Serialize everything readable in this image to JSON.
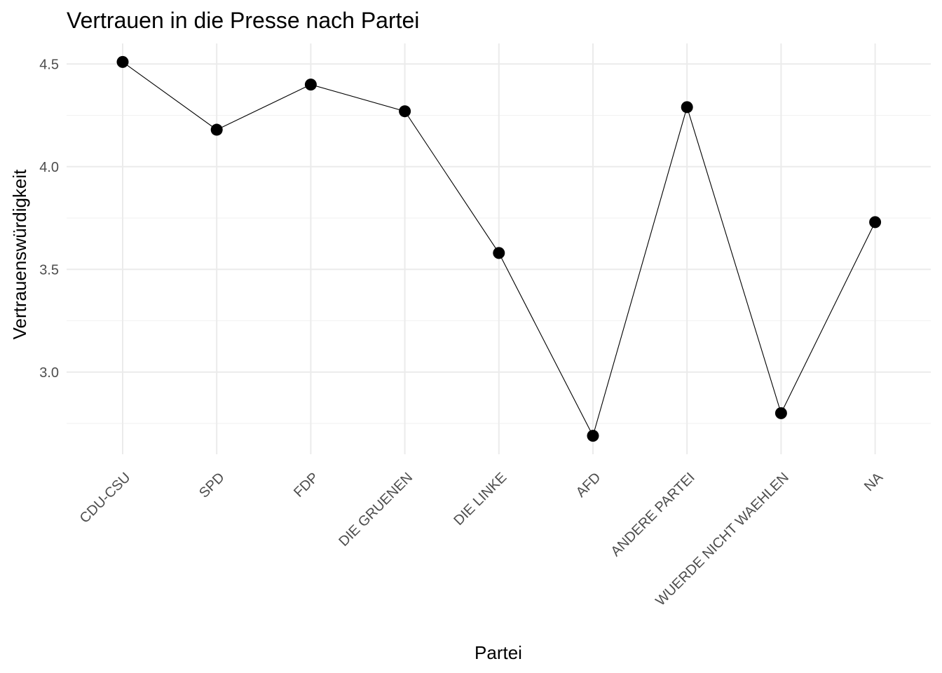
{
  "chart_data": {
    "type": "line",
    "title": "Vertrauen in die Presse nach Partei",
    "xlabel": "Partei",
    "ylabel": "Vertrauenswürdigkeit",
    "categories": [
      "CDU-CSU",
      "SPD",
      "FDP",
      "DIE GRUENEN",
      "DIE LINKE",
      "AFD",
      "ANDERE PARTEI",
      "WUERDE NICHT WAEHLEN",
      "NA"
    ],
    "values": [
      4.51,
      4.18,
      4.4,
      4.27,
      3.58,
      2.69,
      4.29,
      2.8,
      3.73
    ],
    "ylim": [
      2.6,
      4.6
    ],
    "yticks": [
      3.0,
      3.5,
      4.0,
      4.5
    ],
    "ytick_labels": [
      "3.0",
      "3.5",
      "4.0",
      "4.5"
    ],
    "y_minor_ticks": [
      2.75,
      3.25,
      3.75,
      4.25
    ],
    "grid": true,
    "legend": "none",
    "colors": {
      "line": "#000000",
      "point": "#000000",
      "grid_major": "#ebebeb",
      "grid_minor": "#f2f2f2",
      "tick_text": "#4d4d4d"
    }
  }
}
